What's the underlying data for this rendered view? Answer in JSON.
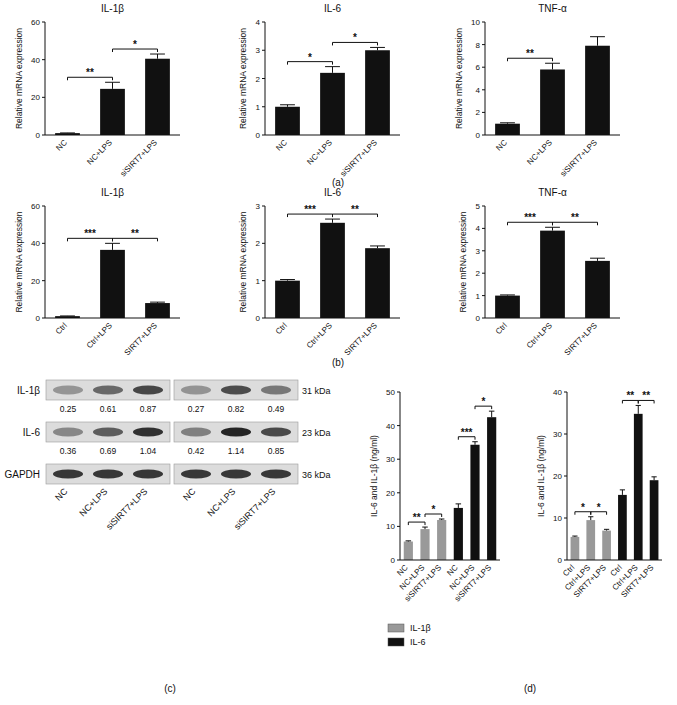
{
  "chart_data": [
    {
      "type": "bar",
      "title": "IL-1β",
      "y_label": "Relative mRNA expression",
      "categories": [
        "NC",
        "NC+LPS",
        "siSIRT7+LPS"
      ],
      "values": [
        1,
        24.5,
        40.5
      ],
      "errors": [
        0.1,
        3.5,
        2.5
      ],
      "color": "#111111",
      "ylim": [
        0,
        60
      ],
      "yticks": [
        0,
        20,
        40,
        60
      ],
      "annotations": [
        {
          "from": 0,
          "to": 1,
          "text": "**"
        },
        {
          "from": 1,
          "to": 2,
          "text": "*"
        }
      ]
    },
    {
      "type": "bar",
      "title": "IL-6",
      "y_label": "Relative mRNA expression",
      "categories": [
        "NC",
        "NC+LPS",
        "siSIRT7+LPS"
      ],
      "values": [
        1,
        2.2,
        3.0
      ],
      "errors": [
        0.07,
        0.22,
        0.1
      ],
      "color": "#111111",
      "ylim": [
        0,
        4
      ],
      "yticks": [
        0,
        1,
        2,
        3,
        4
      ],
      "annotations": [
        {
          "from": 0,
          "to": 1,
          "text": "*"
        },
        {
          "from": 1,
          "to": 2,
          "text": "*"
        }
      ]
    },
    {
      "type": "bar",
      "title": "TNF-α",
      "y_label": "Relative mRNA expression",
      "categories": [
        "NC",
        "NC+LPS",
        "siSIRT7+LPS"
      ],
      "values": [
        1,
        5.8,
        7.9
      ],
      "errors": [
        0.08,
        0.55,
        0.8
      ],
      "color": "#111111",
      "ylim": [
        0,
        10
      ],
      "yticks": [
        0,
        2,
        4,
        6,
        8,
        10
      ],
      "annotations": [
        {
          "from": 0,
          "to": 1,
          "text": "**"
        }
      ]
    },
    {
      "type": "bar",
      "title": "IL-1β",
      "y_label": "Relative mRNA expression",
      "categories": [
        "Ctrl",
        "Ctrl+LPS",
        "SIRT7+LPS"
      ],
      "values": [
        1,
        36.5,
        8
      ],
      "errors": [
        0.1,
        3.5,
        0.5
      ],
      "color": "#111111",
      "ylim": [
        0,
        60
      ],
      "yticks": [
        0,
        20,
        40,
        60
      ],
      "annotations": [
        {
          "from": 0,
          "to": 1,
          "text": "***"
        },
        {
          "from": 1,
          "to": 2,
          "text": "**"
        }
      ]
    },
    {
      "type": "bar",
      "title": "IL-6",
      "y_label": "Relative mRNA expression",
      "categories": [
        "Ctrl",
        "Ctrl+LPS",
        "SIRT7+LPS"
      ],
      "values": [
        1,
        2.55,
        1.87
      ],
      "errors": [
        0.03,
        0.1,
        0.06
      ],
      "color": "#111111",
      "ylim": [
        0,
        3
      ],
      "yticks": [
        0,
        1,
        2,
        3
      ],
      "annotations": [
        {
          "from": 0,
          "to": 1,
          "text": "***"
        },
        {
          "from": 1,
          "to": 2,
          "text": "**"
        }
      ]
    },
    {
      "type": "bar",
      "title": "TNF-α",
      "y_label": "Relative mRNA expression",
      "categories": [
        "Ctrl",
        "Ctrl+LPS",
        "SIRT7+LPS"
      ],
      "values": [
        1,
        3.9,
        2.55
      ],
      "errors": [
        0.03,
        0.15,
        0.12
      ],
      "color": "#111111",
      "ylim": [
        0,
        5
      ],
      "yticks": [
        0,
        1,
        2,
        3,
        4,
        5
      ],
      "annotations": [
        {
          "from": 0,
          "to": 1,
          "text": "***"
        },
        {
          "from": 1,
          "to": 2,
          "text": "**"
        }
      ]
    },
    {
      "type": "bar",
      "y_label": "IL-6 and IL-1β (ng/ml)",
      "categories": [
        "NC",
        "NC+LPS",
        "siSIRT7+LPS",
        "NC",
        "NC+LPS",
        "siSIRT7+LPS"
      ],
      "series": [
        {
          "name": "IL-1β",
          "color": "#999999",
          "values": [
            5.5,
            9.2,
            11.9,
            null,
            null,
            null
          ],
          "errors": [
            0.2,
            0.6,
            0.3,
            null,
            null,
            null
          ]
        },
        {
          "name": "IL-6",
          "color": "#111111",
          "values": [
            null,
            null,
            null,
            15.5,
            34.3,
            42.5
          ],
          "errors": [
            null,
            null,
            null,
            1.2,
            0.9,
            1.8
          ]
        }
      ],
      "ylim": [
        0,
        50
      ],
      "yticks": [
        0,
        10,
        20,
        30,
        40,
        50
      ],
      "legend": "below",
      "annotations": [
        {
          "from": 0,
          "to": 1,
          "text": "**"
        },
        {
          "from": 1,
          "to": 2,
          "text": "*"
        },
        {
          "from": 3,
          "to": 4,
          "text": "***"
        },
        {
          "from": 4,
          "to": 5,
          "text": "*"
        }
      ]
    },
    {
      "type": "bar",
      "y_label": "IL-6 and IL-1β (ng/ml)",
      "categories": [
        "Ctrl",
        "Ctrl+LPS",
        "SIRT7+LPS",
        "Ctrl",
        "Ctrl+LPS",
        "SIRT7+LPS"
      ],
      "series": [
        {
          "color": "#999999",
          "values": [
            5.5,
            9.5,
            7,
            null,
            null,
            null
          ],
          "errors": [
            0.2,
            0.8,
            0.3,
            null,
            null,
            null
          ]
        },
        {
          "color": "#111111",
          "values": [
            null,
            null,
            null,
            15.5,
            34.8,
            19
          ],
          "errors": [
            null,
            null,
            null,
            1.2,
            2,
            0.8
          ]
        }
      ],
      "ylim": [
        0,
        40
      ],
      "yticks": [
        0,
        10,
        20,
        30,
        40
      ],
      "annotations": [
        {
          "from": 0,
          "to": 1,
          "text": "*"
        },
        {
          "from": 1,
          "to": 2,
          "text": "*"
        },
        {
          "from": 3,
          "to": 4,
          "text": "**"
        },
        {
          "from": 4,
          "to": 5,
          "text": "**"
        }
      ]
    }
  ],
  "western_blot": {
    "rows": [
      "IL-1β",
      "IL-6",
      "GAPDH"
    ],
    "sizes": [
      "31 kDa",
      "23 kDa",
      "36 kDa"
    ],
    "blocks": [
      {
        "lanes": [
          "NC",
          "NC+LPS",
          "siSIRT7+LPS"
        ],
        "values": [
          [
            0.25,
            0.61,
            0.87
          ],
          [
            0.36,
            0.69,
            1.04
          ]
        ]
      },
      {
        "lanes": [
          "NC",
          "NC+LPS",
          "siSIRT7+LPS"
        ],
        "values": [
          [
            0.27,
            0.82,
            0.49
          ],
          [
            0.42,
            1.14,
            0.85
          ]
        ]
      }
    ]
  },
  "panel_labels": [
    "(a)",
    "(b)",
    "(c)",
    "(d)"
  ]
}
